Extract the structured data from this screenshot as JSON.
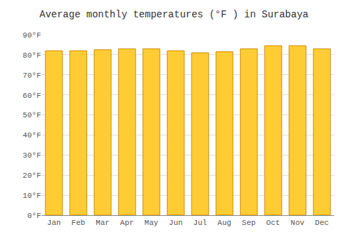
{
  "chart_data": {
    "type": "bar",
    "title": "Average monthly temperatures (°F ) in Surabaya",
    "categories": [
      "Jan",
      "Feb",
      "Mar",
      "Apr",
      "May",
      "Jun",
      "Jul",
      "Aug",
      "Sep",
      "Oct",
      "Nov",
      "Dec"
    ],
    "values": [
      82,
      82,
      82.5,
      83,
      83,
      82,
      81,
      81.5,
      83,
      84.5,
      84.5,
      83
    ],
    "color": "#FFCC33",
    "ylim": [
      0,
      90
    ],
    "yticks": [
      {
        "value": 0,
        "label": "0°F"
      },
      {
        "value": 10,
        "label": "10°F"
      },
      {
        "value": 20,
        "label": "20°F"
      },
      {
        "value": 30,
        "label": "30°F"
      },
      {
        "value": 40,
        "label": "40°F"
      },
      {
        "value": 50,
        "label": "50°F"
      },
      {
        "value": 60,
        "label": "60°F"
      },
      {
        "value": 70,
        "label": "70°F"
      },
      {
        "value": 80,
        "label": "80°F"
      },
      {
        "value": 90,
        "label": "90°F"
      }
    ],
    "grid": true
  }
}
